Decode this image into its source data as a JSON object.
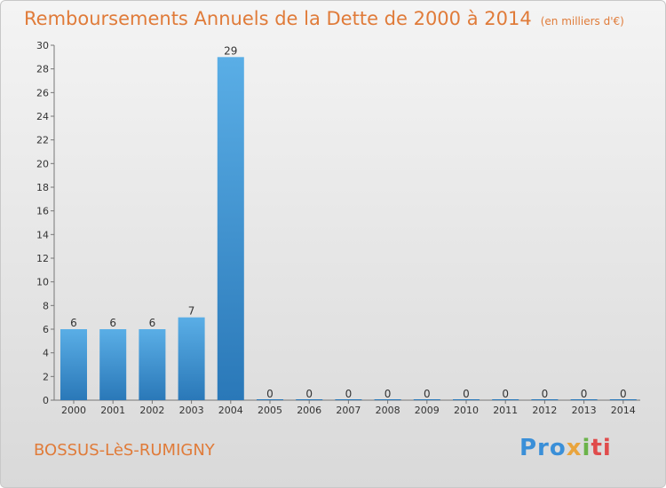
{
  "chart_data": {
    "type": "bar",
    "title": "Remboursements Annuels de la Dette de 2000 à 2014",
    "unit_label": "(en milliers d'€)",
    "categories": [
      "2000",
      "2001",
      "2002",
      "2003",
      "2004",
      "2005",
      "2006",
      "2007",
      "2008",
      "2009",
      "2010",
      "2011",
      "2012",
      "2013",
      "2014"
    ],
    "values": [
      6,
      6,
      6,
      7,
      29,
      0,
      0,
      0,
      0,
      0,
      0,
      0,
      0,
      0,
      0
    ],
    "ylim": [
      0,
      30
    ],
    "yticks": [
      0,
      2,
      4,
      6,
      8,
      10,
      12,
      14,
      16,
      18,
      20,
      22,
      24,
      26,
      28,
      30
    ],
    "xlabel": "",
    "ylabel": "",
    "bar_color": "#4ea3e0"
  },
  "commune": "BOSSUS-LèS-RUMIGNY",
  "logo": {
    "p1": "Pro",
    "p2": "x",
    "p3": "i",
    "p4": "ti"
  }
}
